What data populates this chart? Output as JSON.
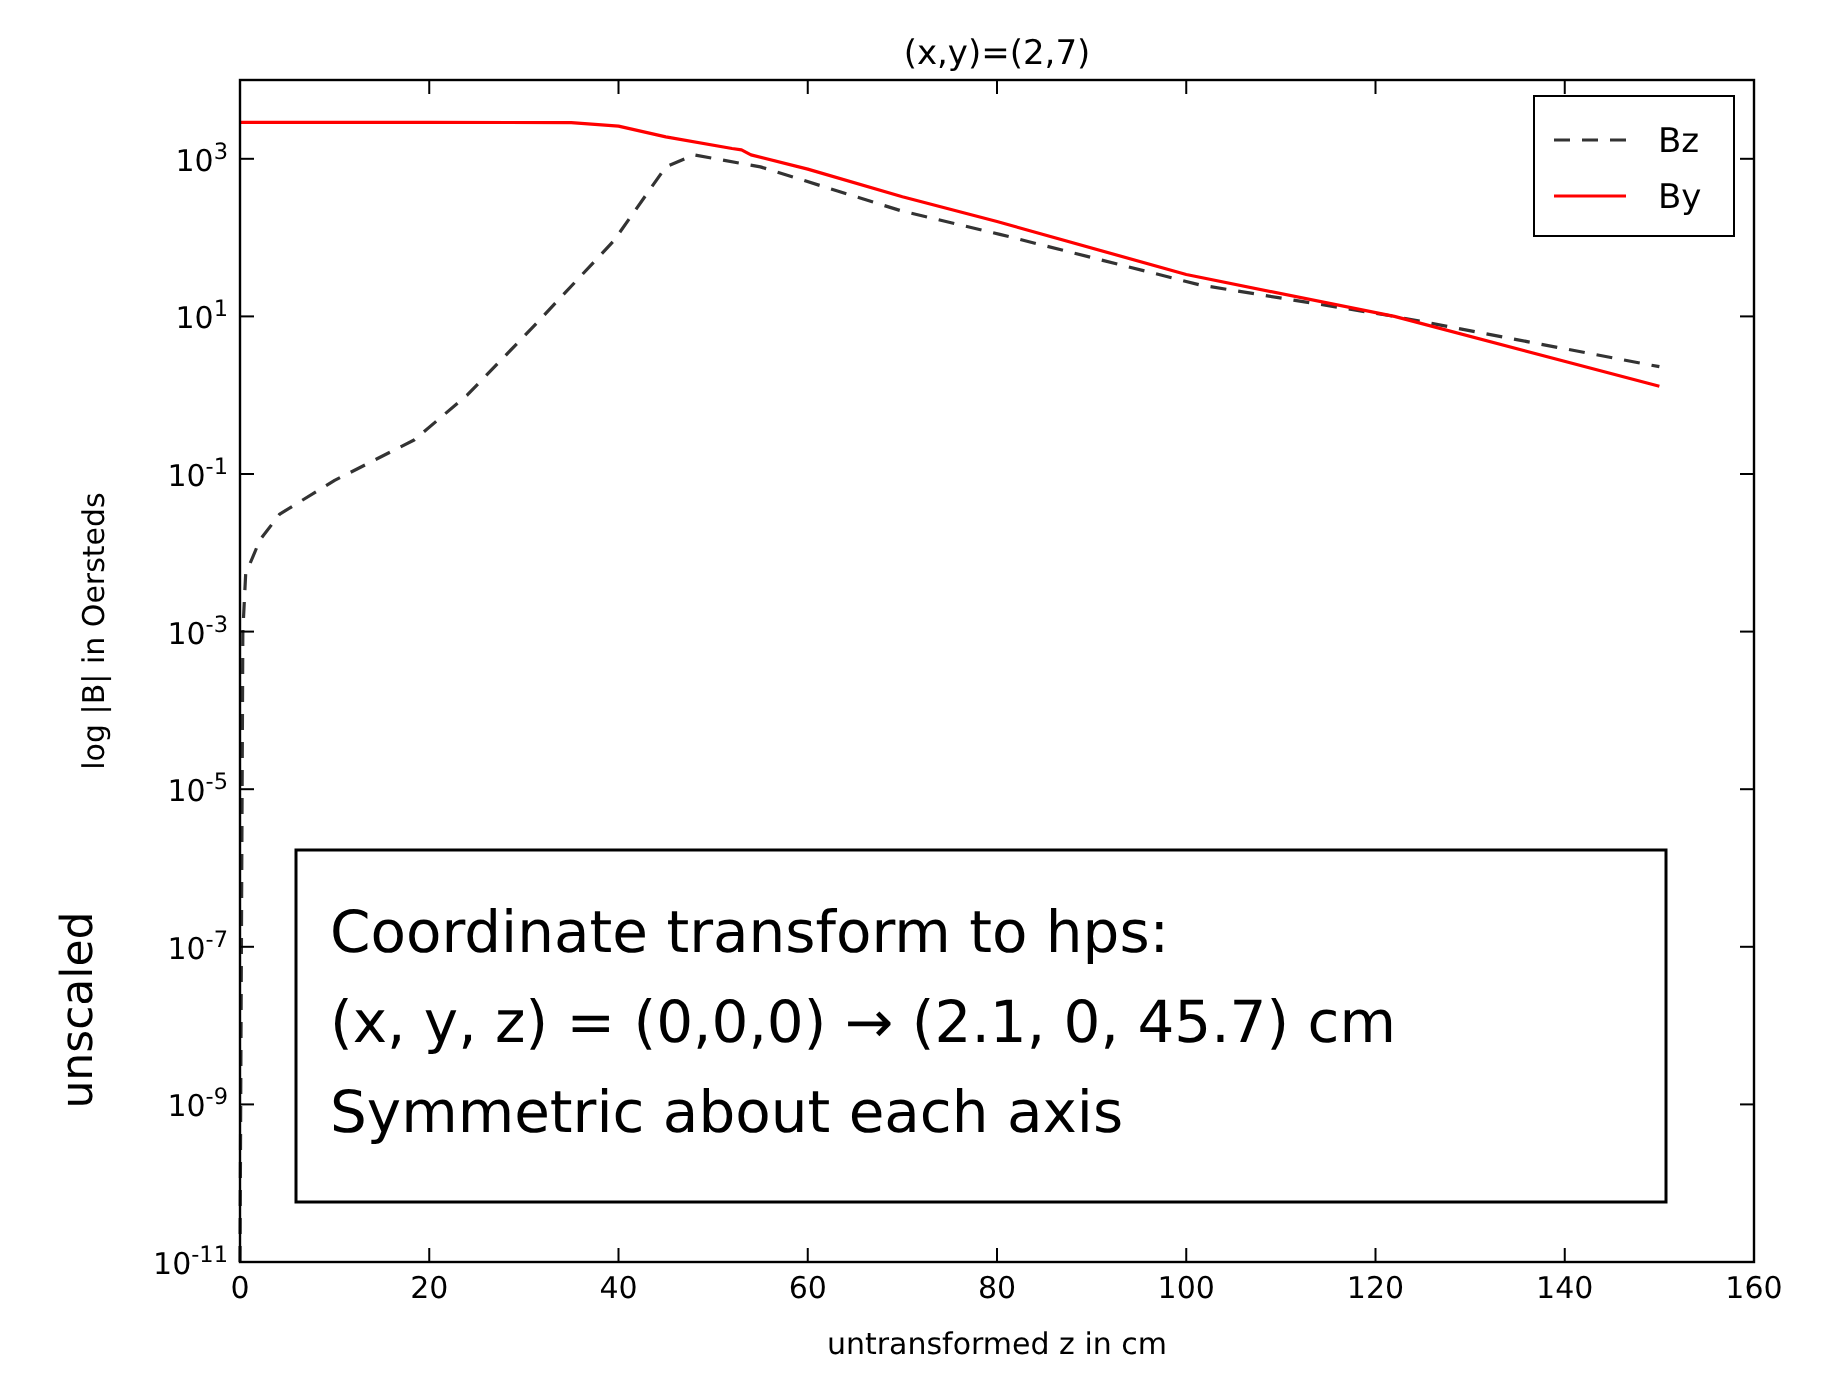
{
  "chart_data": {
    "type": "line",
    "title": "(x,y)=(2,7)",
    "xlabel": "untransformed z in cm",
    "ylabel": "log |B| in Oersteds",
    "annotations": [
      "unscaled",
      "Coordinate transform to hps:",
      "(x, y, z) = (0,0,0) → (2.1, 0, 45.7) cm",
      "Symmetric about each axis"
    ],
    "log": "y",
    "grid": false,
    "legend": "top right",
    "xlim": [
      0,
      160
    ],
    "xticks": [
      0,
      20,
      40,
      60,
      80,
      100,
      120,
      140,
      160
    ],
    "ylim": [
      1e-11,
      10000
    ],
    "yticks": [
      {
        "value": 1e-11,
        "label": "10$^{-11}$"
      },
      {
        "value": 1e-09,
        "label": "10$^{-9}$"
      },
      {
        "value": 1e-07,
        "label": "10$^{-7}$"
      },
      {
        "value": 1e-05,
        "label": "10$^{-5}$"
      },
      {
        "value": 0.001,
        "label": "10$^{-3}$"
      },
      {
        "value": 0.1,
        "label": "10$^{-1}$"
      },
      {
        "value": 10,
        "label": "10$^{1}$"
      },
      {
        "value": 1000,
        "label": "10$^{3}$"
      }
    ],
    "series": [
      {
        "name": "Bz",
        "color": "#333333",
        "line_style": "dashed",
        "x": [
          0,
          0.3,
          0.6,
          2.1,
          4.2,
          10,
          18.4,
          24,
          31,
          39.5,
          45,
          48,
          55,
          69.8,
          80.3,
          101.5,
          122,
          150
        ],
        "values": [
          1e-11,
          0.001,
          0.0054,
          0.0145,
          0.031,
          0.083,
          0.27,
          1.0,
          7.4,
          91,
          790,
          1120,
          790,
          220,
          110,
          25,
          10,
          2.3
        ]
      },
      {
        "name": "By",
        "color": "#ff0000",
        "line_style": "solid",
        "x": [
          0,
          20,
          35,
          40,
          45,
          52,
          53,
          54,
          60,
          70,
          80,
          100,
          122,
          150
        ],
        "values": [
          2900,
          2900,
          2880,
          2600,
          1900,
          1350,
          1300,
          1120,
          740,
          330,
          160,
          34,
          10,
          1.3
        ]
      }
    ]
  }
}
